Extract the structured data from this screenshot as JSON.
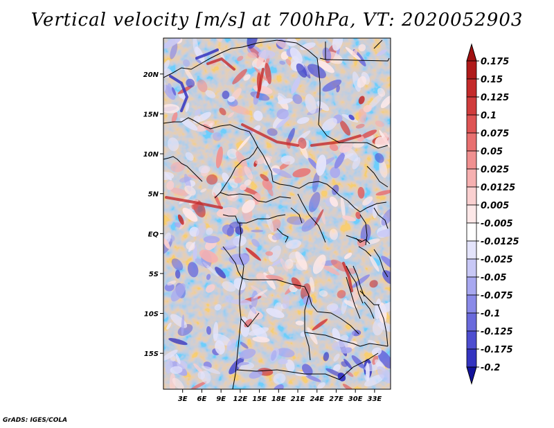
{
  "title": "Vertical velocity [m/s] at 700hPa, VT: 2020052903",
  "footer": "GrADS: IGES/COLA",
  "map": {
    "lon_range": [
      0,
      35.5
    ],
    "lat_range": [
      -19.5,
      24.5
    ],
    "lat_ticks": [
      {
        "value": 20,
        "label": "20N"
      },
      {
        "value": 15,
        "label": "15N"
      },
      {
        "value": 10,
        "label": "10N"
      },
      {
        "value": 5,
        "label": "5N"
      },
      {
        "value": 0,
        "label": "EQ"
      },
      {
        "value": -5,
        "label": "5S"
      },
      {
        "value": -10,
        "label": "10S"
      },
      {
        "value": -15,
        "label": "15S"
      }
    ],
    "lon_ticks": [
      {
        "value": 3,
        "label": "3E"
      },
      {
        "value": 6,
        "label": "6E"
      },
      {
        "value": 9,
        "label": "9E"
      },
      {
        "value": 12,
        "label": "12E"
      },
      {
        "value": 15,
        "label": "15E"
      },
      {
        "value": 18,
        "label": "18E"
      },
      {
        "value": 21,
        "label": "21E"
      },
      {
        "value": 24,
        "label": "24E"
      },
      {
        "value": 27,
        "label": "27E"
      },
      {
        "value": 30,
        "label": "30E"
      },
      {
        "value": 33,
        "label": "33E"
      }
    ]
  },
  "colorbar": {
    "levels": [
      {
        "label": "0.175",
        "color": "#b01a1a"
      },
      {
        "label": "0.15",
        "color": "#c42a2a"
      },
      {
        "label": "0.125",
        "color": "#d03c3c"
      },
      {
        "label": "0.1",
        "color": "#de5454"
      },
      {
        "label": "0.075",
        "color": "#e87070"
      },
      {
        "label": "0.05",
        "color": "#f09090"
      },
      {
        "label": "0.025",
        "color": "#f6b0b0"
      },
      {
        "label": "0.0125",
        "color": "#fad0d0"
      },
      {
        "label": "0.005",
        "color": "#fde8e8"
      },
      {
        "label": "-0.005",
        "color": "#ffffff"
      },
      {
        "label": "-0.0125",
        "color": "#e4e4fb"
      },
      {
        "label": "-0.025",
        "color": "#c8c8f6"
      },
      {
        "label": "-0.05",
        "color": "#a8a8f0"
      },
      {
        "label": "-0.075",
        "color": "#8a8ae8"
      },
      {
        "label": "-0.1",
        "color": "#6a6adc"
      },
      {
        "label": "-0.125",
        "color": "#4d4dd0"
      },
      {
        "label": "-0.175",
        "color": "#3434c0"
      },
      {
        "label": "-0.2",
        "color": "#1f1fa8"
      }
    ],
    "top_arrow_color": "#a01010",
    "bottom_arrow_color": "#12129a"
  }
}
